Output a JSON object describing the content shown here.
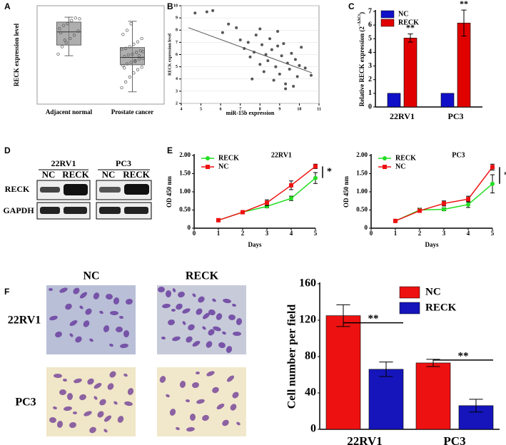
{
  "panel_labels": [
    "A",
    "B",
    "C",
    "D",
    "E",
    "F"
  ],
  "chart_data": [
    {
      "type": "box",
      "ylabel": "RECK expression level",
      "categories": [
        "Adjacent normal",
        "Prostate cancer"
      ],
      "ylim": [
        0,
        12
      ],
      "color": "#8c8c8c",
      "boxes": [
        {
          "min": 5.9,
          "q1": 7.2,
          "median": 8.8,
          "q3": 10.0,
          "max": 10.6
        },
        {
          "min": 1.5,
          "q1": 4.8,
          "median": 5.7,
          "q3": 6.9,
          "max": 10.1
        }
      ],
      "points": [
        [
          6.1,
          7.0,
          7.5,
          8.0,
          8.4,
          8.9,
          9.2,
          9.6,
          9.8,
          10.2,
          10.5,
          10.4,
          8.7,
          7.8
        ],
        [
          2.0,
          2.7,
          3.3,
          3.8,
          4.2,
          4.5,
          4.7,
          4.9,
          5.1,
          5.3,
          5.5,
          5.6,
          5.8,
          6.0,
          6.1,
          6.3,
          6.5,
          6.7,
          6.8,
          7.0,
          7.3,
          7.6,
          8.0,
          8.5,
          9.0,
          9.8,
          5.2,
          5.9,
          6.4,
          4.4
        ]
      ]
    },
    {
      "type": "scatter",
      "ylabel": "RECK expression level",
      "xlabel": "miR-15b expression",
      "xlim": [
        4,
        11
      ],
      "ylim": [
        2,
        10
      ],
      "xticks": [
        4,
        5,
        6,
        7,
        8,
        9,
        10,
        11
      ],
      "yticks": [
        2,
        3,
        4,
        5,
        6,
        7,
        8,
        9,
        10
      ],
      "grid": true,
      "color": "#555555",
      "x": [
        4.7,
        5.3,
        5.6,
        6.1,
        6.4,
        6.8,
        7.0,
        7.2,
        7.4,
        7.5,
        7.7,
        7.8,
        8.0,
        8.1,
        8.2,
        8.3,
        8.4,
        8.5,
        8.6,
        8.7,
        8.8,
        8.9,
        9.0,
        9.1,
        9.2,
        9.3,
        9.4,
        9.5,
        9.6,
        9.7,
        9.8,
        9.9,
        10.0,
        10.1,
        10.3,
        10.6,
        8.0,
        7.6,
        8.9,
        9.3
      ],
      "y": [
        9.4,
        9.5,
        9.6,
        7.8,
        8.5,
        8.2,
        7.2,
        6.5,
        7.0,
        5.8,
        6.2,
        7.6,
        5.2,
        6.8,
        4.6,
        6.0,
        5.5,
        7.3,
        6.4,
        3.9,
        5.0,
        6.7,
        4.4,
        5.9,
        6.9,
        3.6,
        5.3,
        4.8,
        6.1,
        3.4,
        5.6,
        4.2,
        5.1,
        6.6,
        4.9,
        4.3,
        8.1,
        4.0,
        7.9,
        3.2
      ],
      "trend": {
        "x": [
          4.36,
          10.64
        ],
        "y": [
          8.2,
          4.5
        ]
      }
    },
    {
      "type": "bar",
      "ylabel_parts": [
        "Relative RECK expression (2",
        "−ΔΔCt",
        ")"
      ],
      "categories": [
        "22RV1",
        "PC3"
      ],
      "ylim": [
        0,
        7
      ],
      "yticks": [
        0,
        1,
        2,
        3,
        4,
        5,
        6,
        7
      ],
      "legend": "top-left",
      "series": [
        {
          "name": "NC",
          "color": "#1010c8",
          "values": [
            1,
            1
          ]
        },
        {
          "name": "RECK",
          "color": "#e00000",
          "values": [
            5.05,
            6.15
          ],
          "errors": [
            0.3,
            0.95
          ]
        }
      ],
      "significance": [
        "**",
        "**"
      ],
      "significance_style": "above"
    },
    {
      "type": "line",
      "title": "22RV1",
      "ylabel": "OD 450 nm",
      "xlabel": "Days",
      "x": [
        1,
        2,
        3,
        4,
        5
      ],
      "xlim": [
        0,
        5
      ],
      "xticks": [
        0,
        1,
        2,
        3,
        4,
        5
      ],
      "ylim": [
        0,
        2
      ],
      "yticks": [
        0,
        {
          "value": 0.5,
          "label": "0.50"
        },
        {
          "value": 1,
          "label": "1.00"
        },
        {
          "value": 1.5,
          "label": "1.50"
        },
        {
          "value": 2,
          "label": "2.00"
        }
      ],
      "legend": "top-left",
      "series": [
        {
          "name": "RECK",
          "color": "#22dd22",
          "marker": "circle",
          "values": [
            0.22,
            0.44,
            0.6,
            0.82,
            1.38
          ],
          "errors": [
            0.02,
            0.02,
            0.04,
            0.06,
            0.15
          ]
        },
        {
          "name": "NC",
          "color": "#ee1111",
          "marker": "square",
          "values": [
            0.22,
            0.44,
            0.7,
            1.18,
            1.7
          ],
          "errors": [
            0.02,
            0.02,
            0.08,
            0.12,
            0.06
          ]
        }
      ],
      "significance": "*"
    },
    {
      "type": "line",
      "title": "PC3",
      "ylabel": "OD 450 nm",
      "xlabel": "Days",
      "x": [
        1,
        2,
        3,
        4,
        5
      ],
      "xlim": [
        0,
        5
      ],
      "xticks": [
        0,
        1,
        2,
        3,
        4,
        5
      ],
      "ylim": [
        0,
        2
      ],
      "yticks": [
        0,
        {
          "value": 0.5,
          "label": "0.50"
        },
        {
          "value": 1,
          "label": "1.00"
        },
        {
          "value": 1.5,
          "label": "1.50"
        },
        {
          "value": 2,
          "label": "2.00"
        }
      ],
      "legend": "top-left",
      "series": [
        {
          "name": "RECK",
          "color": "#22dd22",
          "marker": "circle",
          "values": [
            0.2,
            0.5,
            0.52,
            0.65,
            1.22
          ],
          "errors": [
            0.03,
            0.05,
            0.04,
            0.08,
            0.25
          ]
        },
        {
          "name": "NC",
          "color": "#ee1111",
          "marker": "square",
          "values": [
            0.2,
            0.48,
            0.68,
            0.8,
            1.68
          ],
          "errors": [
            0.03,
            0.04,
            0.07,
            0.08,
            0.08
          ]
        }
      ],
      "significance": "*"
    },
    {
      "type": "bar",
      "ylabel": "Cell number per field",
      "categories": [
        "22RV1",
        "PC3"
      ],
      "ylim": [
        0,
        160
      ],
      "yticks": [
        0,
        40,
        80,
        120,
        160
      ],
      "legend": "top-right",
      "series": [
        {
          "name": "NC",
          "color": "#ee1111",
          "values": [
            125,
            73
          ],
          "errors": [
            12,
            4
          ]
        },
        {
          "name": "RECK",
          "color": "#1515bb",
          "values": [
            66,
            26
          ],
          "errors": [
            8,
            7
          ]
        }
      ],
      "significance": [
        "**",
        "**"
      ],
      "significance_style": "bracket"
    }
  ],
  "western_blot": {
    "groups": [
      {
        "name": "22RV1",
        "lanes": [
          "NC",
          "RECK"
        ]
      },
      {
        "name": "PC3",
        "lanes": [
          "NC",
          "RECK"
        ]
      }
    ],
    "rows": [
      "RECK",
      "GAPDH"
    ]
  },
  "micrographs": {
    "columns": [
      "NC",
      "RECK"
    ],
    "rows": [
      "22RV1",
      "PC3"
    ]
  }
}
